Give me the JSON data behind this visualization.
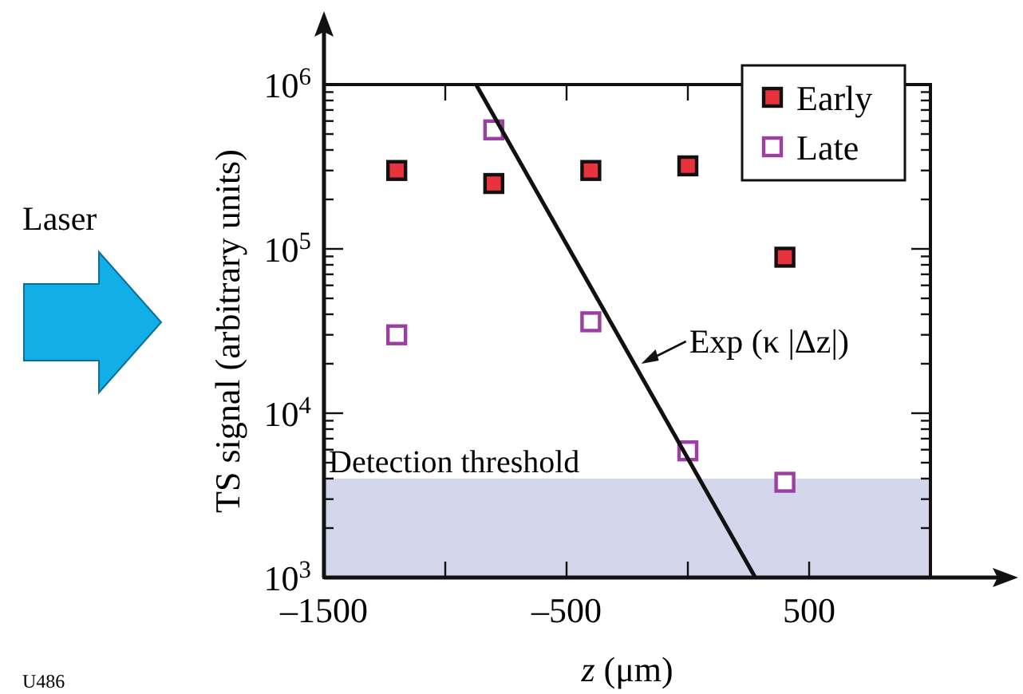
{
  "chart_data": {
    "type": "scatter",
    "xlabel": "z (μm)",
    "ylabel": "TS signal (arbitrary units)",
    "x": [
      -1200,
      -800,
      -400,
      0,
      400
    ],
    "series": [
      {
        "name": "Early",
        "color": "#e8323c",
        "values": [
          300000,
          250000,
          300000,
          320000,
          89000
        ],
        "marker": "square"
      },
      {
        "name": "Late",
        "color": "#9b3fa0",
        "values": [
          30000,
          530000,
          36000,
          5900,
          3800
        ],
        "marker": "square"
      },
      {
        "type": "line",
        "color": "#111111",
        "x": [
          -873,
          278
        ],
        "values": [
          1000000,
          1000
        ],
        "line_style": "solid"
      }
    ],
    "xlim": [
      -1500,
      1000
    ],
    "xticks": [
      {
        "value": -1500,
        "label": "–1500"
      },
      {
        "value": -1000,
        "label": null
      },
      {
        "value": -500,
        "label": "–500"
      },
      {
        "value": 0,
        "label": null
      },
      500,
      {
        "value": 1000,
        "label": null
      }
    ],
    "ylim": [
      1000,
      1000000
    ],
    "log": true,
    "yticks": [
      {
        "value": 1000,
        "label": "10$^{3}$"
      },
      {
        "value": 2000,
        "label": null
      },
      {
        "value": 3000,
        "label": null
      },
      {
        "value": 4000,
        "label": null
      },
      {
        "value": 5000,
        "label": null
      },
      {
        "value": 6000,
        "label": null
      },
      {
        "value": 7000,
        "label": null
      },
      {
        "value": 8000,
        "label": null
      },
      {
        "value": 9000,
        "label": null
      },
      {
        "value": 10000,
        "label": "10$^{4}$"
      },
      {
        "value": 20000,
        "label": null
      },
      {
        "value": 30000,
        "label": null
      },
      {
        "value": 40000,
        "label": null
      },
      {
        "value": 50000,
        "label": null
      },
      {
        "value": 60000,
        "label": null
      },
      {
        "value": 70000,
        "label": null
      },
      {
        "value": 80000,
        "label": null
      },
      {
        "value": 90000,
        "label": null
      },
      {
        "value": 100000,
        "label": "10$^{5}$"
      },
      {
        "value": 200000,
        "label": null
      },
      {
        "value": 300000,
        "label": null
      },
      {
        "value": 400000,
        "label": null
      },
      {
        "value": 500000,
        "label": null
      },
      {
        "value": 600000,
        "label": null
      },
      {
        "value": 700000,
        "label": null
      },
      {
        "value": 800000,
        "label": null
      },
      {
        "value": 900000,
        "label": null
      },
      {
        "value": 1000000,
        "label": "10$^{6}$"
      }
    ],
    "bands": [
      {
        "axis": "y",
        "from": 1000,
        "to": 4000,
        "label": "Detection threshold",
        "color": "#d4d6ec"
      }
    ],
    "annotations": [
      "Laser",
      {
        "text": "Exp (κ |Δz|)",
        "x": -192,
        "y": 20000
      },
      "U486"
    ],
    "legend": "top right",
    "grid": false
  }
}
